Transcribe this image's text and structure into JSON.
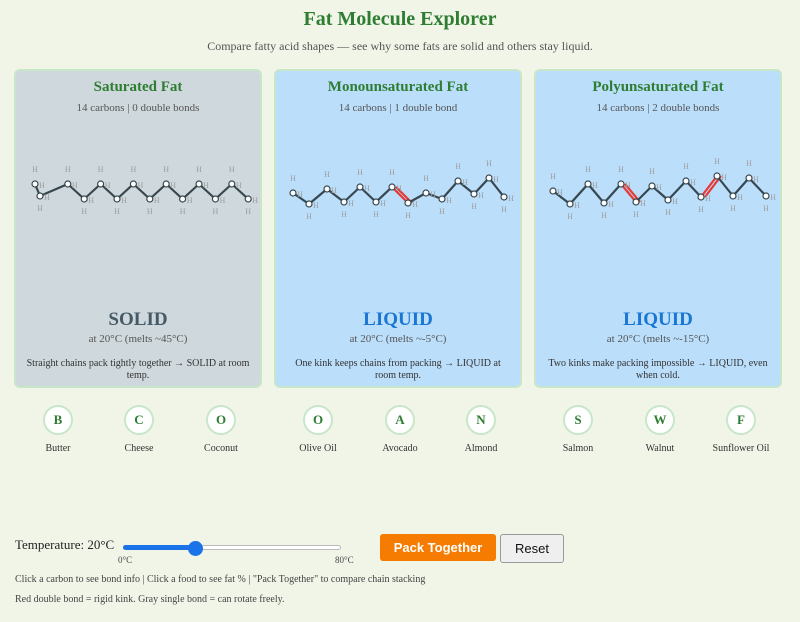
{
  "header": {
    "title": "Fat Molecule Explorer",
    "subtitle": "Compare fatty acid shapes — see why some fats are solid and others stay liquid."
  },
  "panels": [
    {
      "title": "Saturated Fat",
      "subtitle": "14 carbons | 0 double bonds",
      "state": "SOLID",
      "melt": "at 20°C  (melts ~45°C)",
      "description": "Straight chains pack tightly together → SOLID at room temp.",
      "double_bonds": 0
    },
    {
      "title": "Monounsaturated Fat",
      "subtitle": "14 carbons | 1 double bond",
      "state": "LIQUID",
      "melt": "at 20°C  (melts ~-5°C)",
      "description": "One kink keeps chains from packing → LIQUID at room temp.",
      "double_bonds": 1
    },
    {
      "title": "Polyunsaturated Fat",
      "subtitle": "14 carbons | 2 double bonds",
      "state": "LIQUID",
      "melt": "at 20°C  (melts ~-15°C)",
      "description": "Two kinks make packing impossible → LIQUID, even when cold.",
      "double_bonds": 2
    }
  ],
  "atom_label": "H",
  "foods": [
    {
      "letter": "B",
      "name": "Butter"
    },
    {
      "letter": "C",
      "name": "Cheese"
    },
    {
      "letter": "O",
      "name": "Coconut"
    },
    {
      "letter": "O",
      "name": "Olive Oil"
    },
    {
      "letter": "A",
      "name": "Avocado"
    },
    {
      "letter": "N",
      "name": "Almond"
    },
    {
      "letter": "S",
      "name": "Salmon"
    },
    {
      "letter": "W",
      "name": "Walnut"
    },
    {
      "letter": "F",
      "name": "Sunflower Oil"
    }
  ],
  "controls": {
    "temperature_label": "Temperature: 20°C",
    "temperature_value": 20,
    "temperature_min": 0,
    "temperature_max": 80,
    "tick_min": "0°C",
    "tick_max": "80°C",
    "pack_label": "Pack Together",
    "reset_label": "Reset"
  },
  "help": {
    "line1": "Click a carbon to see bond info | Click a food to see fat % | \"Pack Together\" to compare chain stacking",
    "line2": "Red double bond = rigid kink. Gray single bond = can rotate freely."
  },
  "colors": {
    "title_green": "#2e7d32",
    "double_bond_red": "#e53935",
    "bond_gray": "#37474f",
    "pack_orange": "#f57c00",
    "slider_blue": "#1a73e8"
  }
}
